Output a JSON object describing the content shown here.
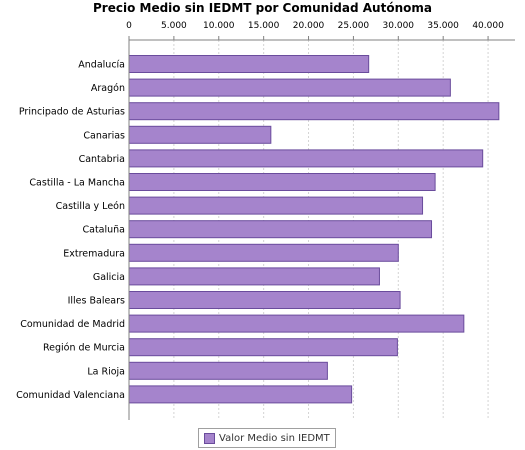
{
  "chart_data": {
    "type": "bar",
    "orientation": "horizontal",
    "title": "Precio Medio sin IEDMT por Comunidad Autónoma",
    "categories": [
      "Andalucía",
      "Aragón",
      "Principado de Asturias",
      "Canarias",
      "Cantabria",
      "Castilla - La Mancha",
      "Castilla y León",
      "Cataluña",
      "Extremadura",
      "Galicia",
      "Illes Balears",
      "Comunidad de Madrid",
      "Región de Murcia",
      "La Rioja",
      "Comunidad Valenciana"
    ],
    "series": [
      {
        "name": "Valor Medio sin IEDMT",
        "values": [
          26700,
          35800,
          41200,
          15800,
          39400,
          34100,
          32700,
          33700,
          30000,
          27900,
          30200,
          37300,
          29900,
          22100,
          24800
        ]
      }
    ],
    "xticks": [
      "0",
      "5.000",
      "10.000",
      "15.000",
      "20.000",
      "25.000",
      "30.000",
      "35.000",
      "40.000"
    ],
    "tick_values": [
      0,
      5000,
      10000,
      15000,
      20000,
      25000,
      30000,
      35000,
      40000
    ],
    "xlim": [
      0,
      43000
    ],
    "xaxis_position": "top",
    "grid": true,
    "legend_position": "bottom",
    "bar_color": "#a584cc",
    "bar_stroke": "#6a4c9c",
    "grid_color": "#d4d4d4"
  }
}
